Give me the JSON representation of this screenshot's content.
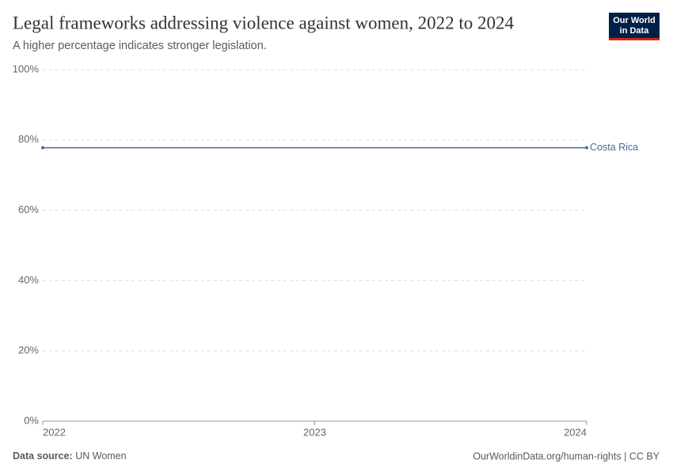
{
  "chart_data": {
    "type": "line",
    "title": "Legal frameworks addressing violence against women, 2022 to 2024",
    "subtitle": "A higher percentage indicates stronger legislation.",
    "logo": [
      "Our World",
      "in Data"
    ],
    "source_label": "Data source:",
    "source": "UN Women",
    "footer": "OurWorldinData.org/human-rights | CC BY",
    "x": [
      2022,
      2023,
      2024
    ],
    "series": [
      {
        "name": "Costa Rica",
        "color": "#4c6a9c",
        "values": [
          77.8,
          77.8,
          77.8
        ]
      }
    ],
    "xlim": [
      2022,
      2024
    ],
    "xticks": [
      2022,
      2023,
      2024
    ],
    "ylim": [
      0,
      100
    ],
    "yticks": [
      {
        "value": 0,
        "label": "0%"
      },
      {
        "value": 20,
        "label": "20%"
      },
      {
        "value": 40,
        "label": "40%"
      },
      {
        "value": 60,
        "label": "60%"
      },
      {
        "value": 80,
        "label": "80%"
      },
      {
        "value": 100,
        "label": "100%"
      }
    ],
    "grid": true
  }
}
